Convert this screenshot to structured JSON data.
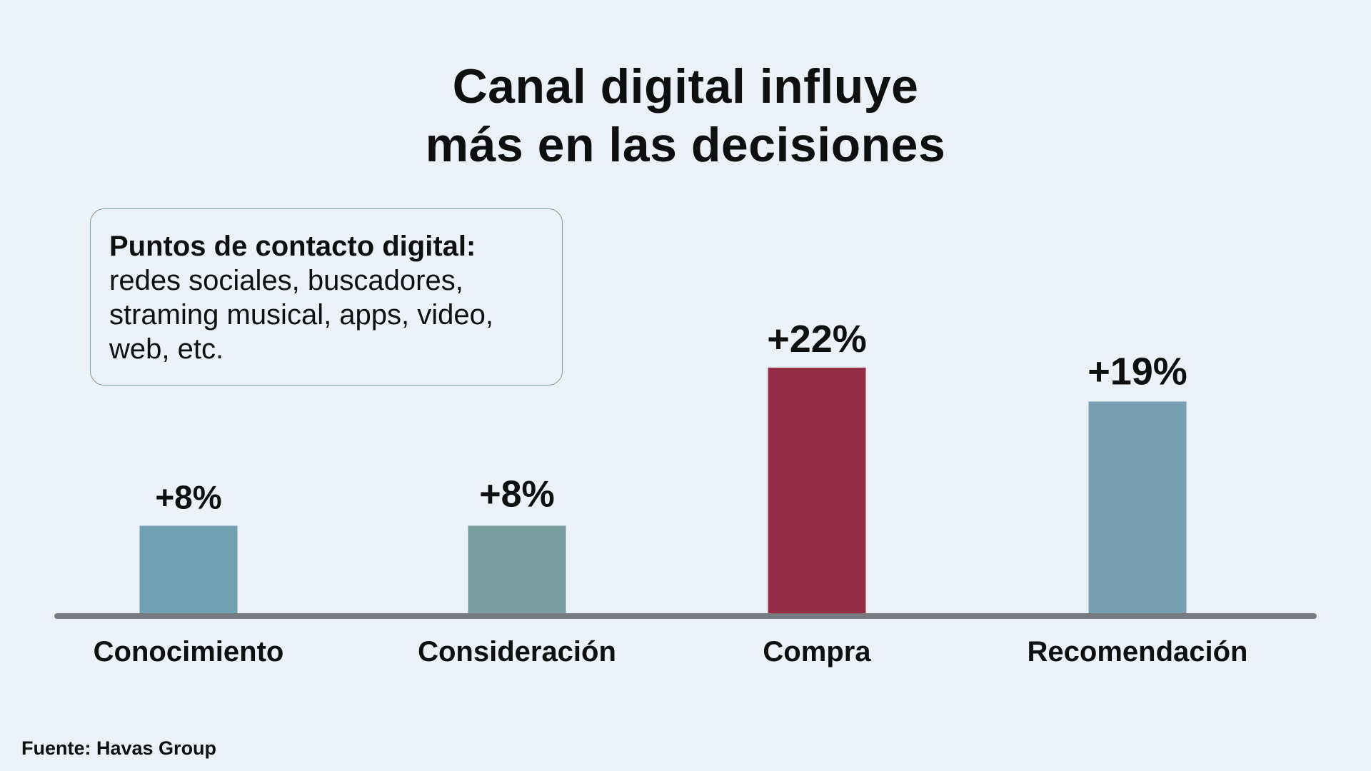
{
  "chart_data": {
    "type": "bar",
    "title": "Canal digital influye más en las decisiones",
    "title_lines": [
      "Canal digital influye",
      "más en las decisiones"
    ],
    "categories": [
      "Conocimiento",
      "Consideración",
      "Compra",
      "Recomendación"
    ],
    "values": [
      8,
      8,
      22,
      19
    ],
    "value_labels": [
      "+8%",
      "+8%",
      "+22%",
      "+19%"
    ],
    "highlight_index": 2,
    "colors": [
      "#71a1b3",
      "#799c9f",
      "#962e48",
      "#76a0b1"
    ],
    "axis_color": "#777b80",
    "grid": false,
    "legend": "none",
    "xlabel": "",
    "ylabel": "",
    "ylim": [
      0,
      28
    ]
  },
  "note": {
    "heading": "Puntos de contacto digital:",
    "body": "redes sociales, buscadores, straming musical, apps, video, web, etc."
  },
  "source": "Fuente: Havas Group"
}
